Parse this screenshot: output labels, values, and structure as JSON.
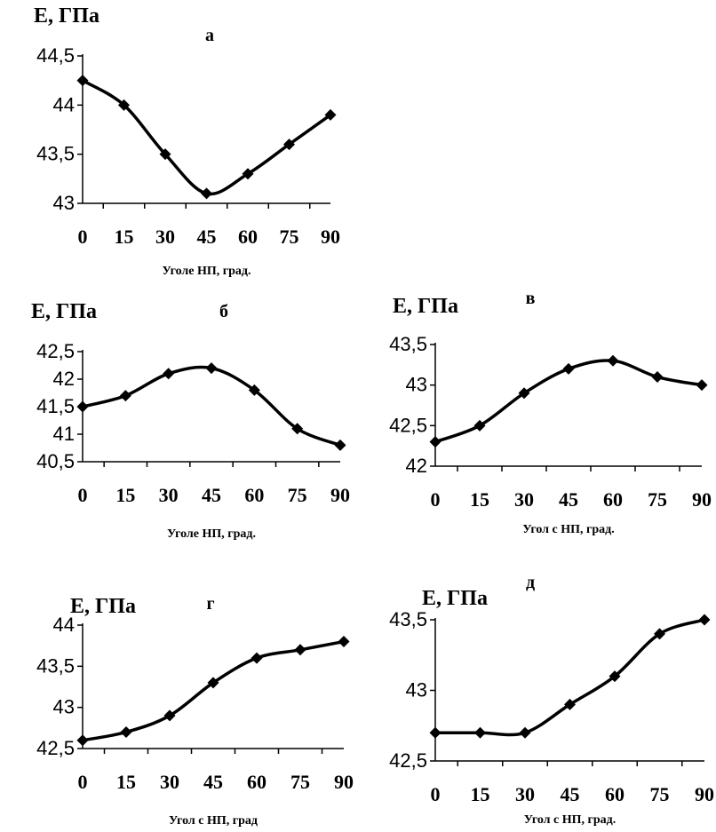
{
  "chart_data": [
    {
      "type": "line",
      "panel_label": "а",
      "ylabel": "E, ГПа",
      "xlabel": "Уголе НП, град.",
      "x": [
        0,
        15,
        30,
        45,
        60,
        75,
        90
      ],
      "ylim": [
        43,
        44.5
      ],
      "yticks": [
        "43",
        "43,5",
        "44",
        "44,5"
      ],
      "series": [
        {
          "values": [
            44.25,
            44.0,
            43.5,
            43.1,
            43.3,
            43.6,
            43.9
          ]
        }
      ]
    },
    {
      "type": "line",
      "panel_label": "б",
      "ylabel": "E, ГПа",
      "xlabel": "Уголе НП, град.",
      "x": [
        0,
        15,
        30,
        45,
        60,
        75,
        90
      ],
      "ylim": [
        40.5,
        42.5
      ],
      "yticks": [
        "40,5",
        "41",
        "41,5",
        "42",
        "42,5"
      ],
      "series": [
        {
          "values": [
            41.5,
            41.7,
            42.1,
            42.2,
            41.8,
            41.1,
            40.8
          ]
        }
      ]
    },
    {
      "type": "line",
      "panel_label": "в",
      "ylabel": "E, ГПа",
      "xlabel": "Угол с НП, град.",
      "x": [
        0,
        15,
        30,
        45,
        60,
        75,
        90
      ],
      "ylim": [
        42,
        43.5
      ],
      "yticks": [
        "42",
        "42,5",
        "43",
        "43,5"
      ],
      "series": [
        {
          "values": [
            42.3,
            42.5,
            42.9,
            43.2,
            43.3,
            43.1,
            43.0
          ]
        }
      ]
    },
    {
      "type": "line",
      "panel_label": "г",
      "ylabel": "E, ГПа",
      "xlabel": "Угол с НП, град",
      "x": [
        0,
        15,
        30,
        45,
        60,
        75,
        90
      ],
      "ylim": [
        42.5,
        44
      ],
      "yticks": [
        "42,5",
        "43",
        "43,5",
        "44"
      ],
      "series": [
        {
          "values": [
            42.6,
            42.7,
            42.9,
            43.3,
            43.6,
            43.7,
            43.8
          ]
        }
      ]
    },
    {
      "type": "line",
      "panel_label": "д",
      "ylabel": "E, ГПа",
      "xlabel": "Угол с НП, град.",
      "x": [
        0,
        15,
        30,
        45,
        60,
        75,
        90
      ],
      "ylim": [
        42.5,
        43.5
      ],
      "yticks": [
        "42,5",
        "43",
        "43,5"
      ],
      "series": [
        {
          "values": [
            42.7,
            42.7,
            42.7,
            42.9,
            43.1,
            43.4,
            43.5
          ]
        }
      ]
    }
  ]
}
